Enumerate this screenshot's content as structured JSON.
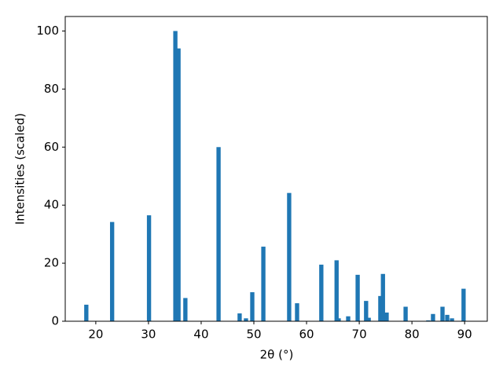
{
  "chart_data": {
    "type": "bar",
    "xlabel": "2θ (°)",
    "ylabel": "Intensities (scaled)",
    "x": [
      18.2,
      23.1,
      30.1,
      35.1,
      35.7,
      37.0,
      43.3,
      47.3,
      48.5,
      49.7,
      51.8,
      56.7,
      58.2,
      62.8,
      65.7,
      66.1,
      67.9,
      69.7,
      71.3,
      71.8,
      74.0,
      74.5,
      75.2,
      78.8,
      83.1,
      84.0,
      85.8,
      86.7,
      87.6,
      89.8
    ],
    "values": [
      5.7,
      34.2,
      36.5,
      100,
      94,
      8,
      60,
      2.7,
      1,
      10,
      25.7,
      44.2,
      6.2,
      19.5,
      21,
      1,
      1.7,
      16,
      7,
      1.2,
      8.7,
      16.3,
      3,
      5,
      0.3,
      2.5,
      5,
      2.2,
      1,
      11.2
    ],
    "color": "#1f77b4",
    "xlim": [
      14.2,
      94.3
    ],
    "xticks": [
      20,
      30,
      40,
      50,
      60,
      70,
      80,
      90
    ],
    "ylim": [
      0,
      105
    ],
    "yticks": [
      0,
      20,
      40,
      60,
      80,
      100
    ]
  }
}
